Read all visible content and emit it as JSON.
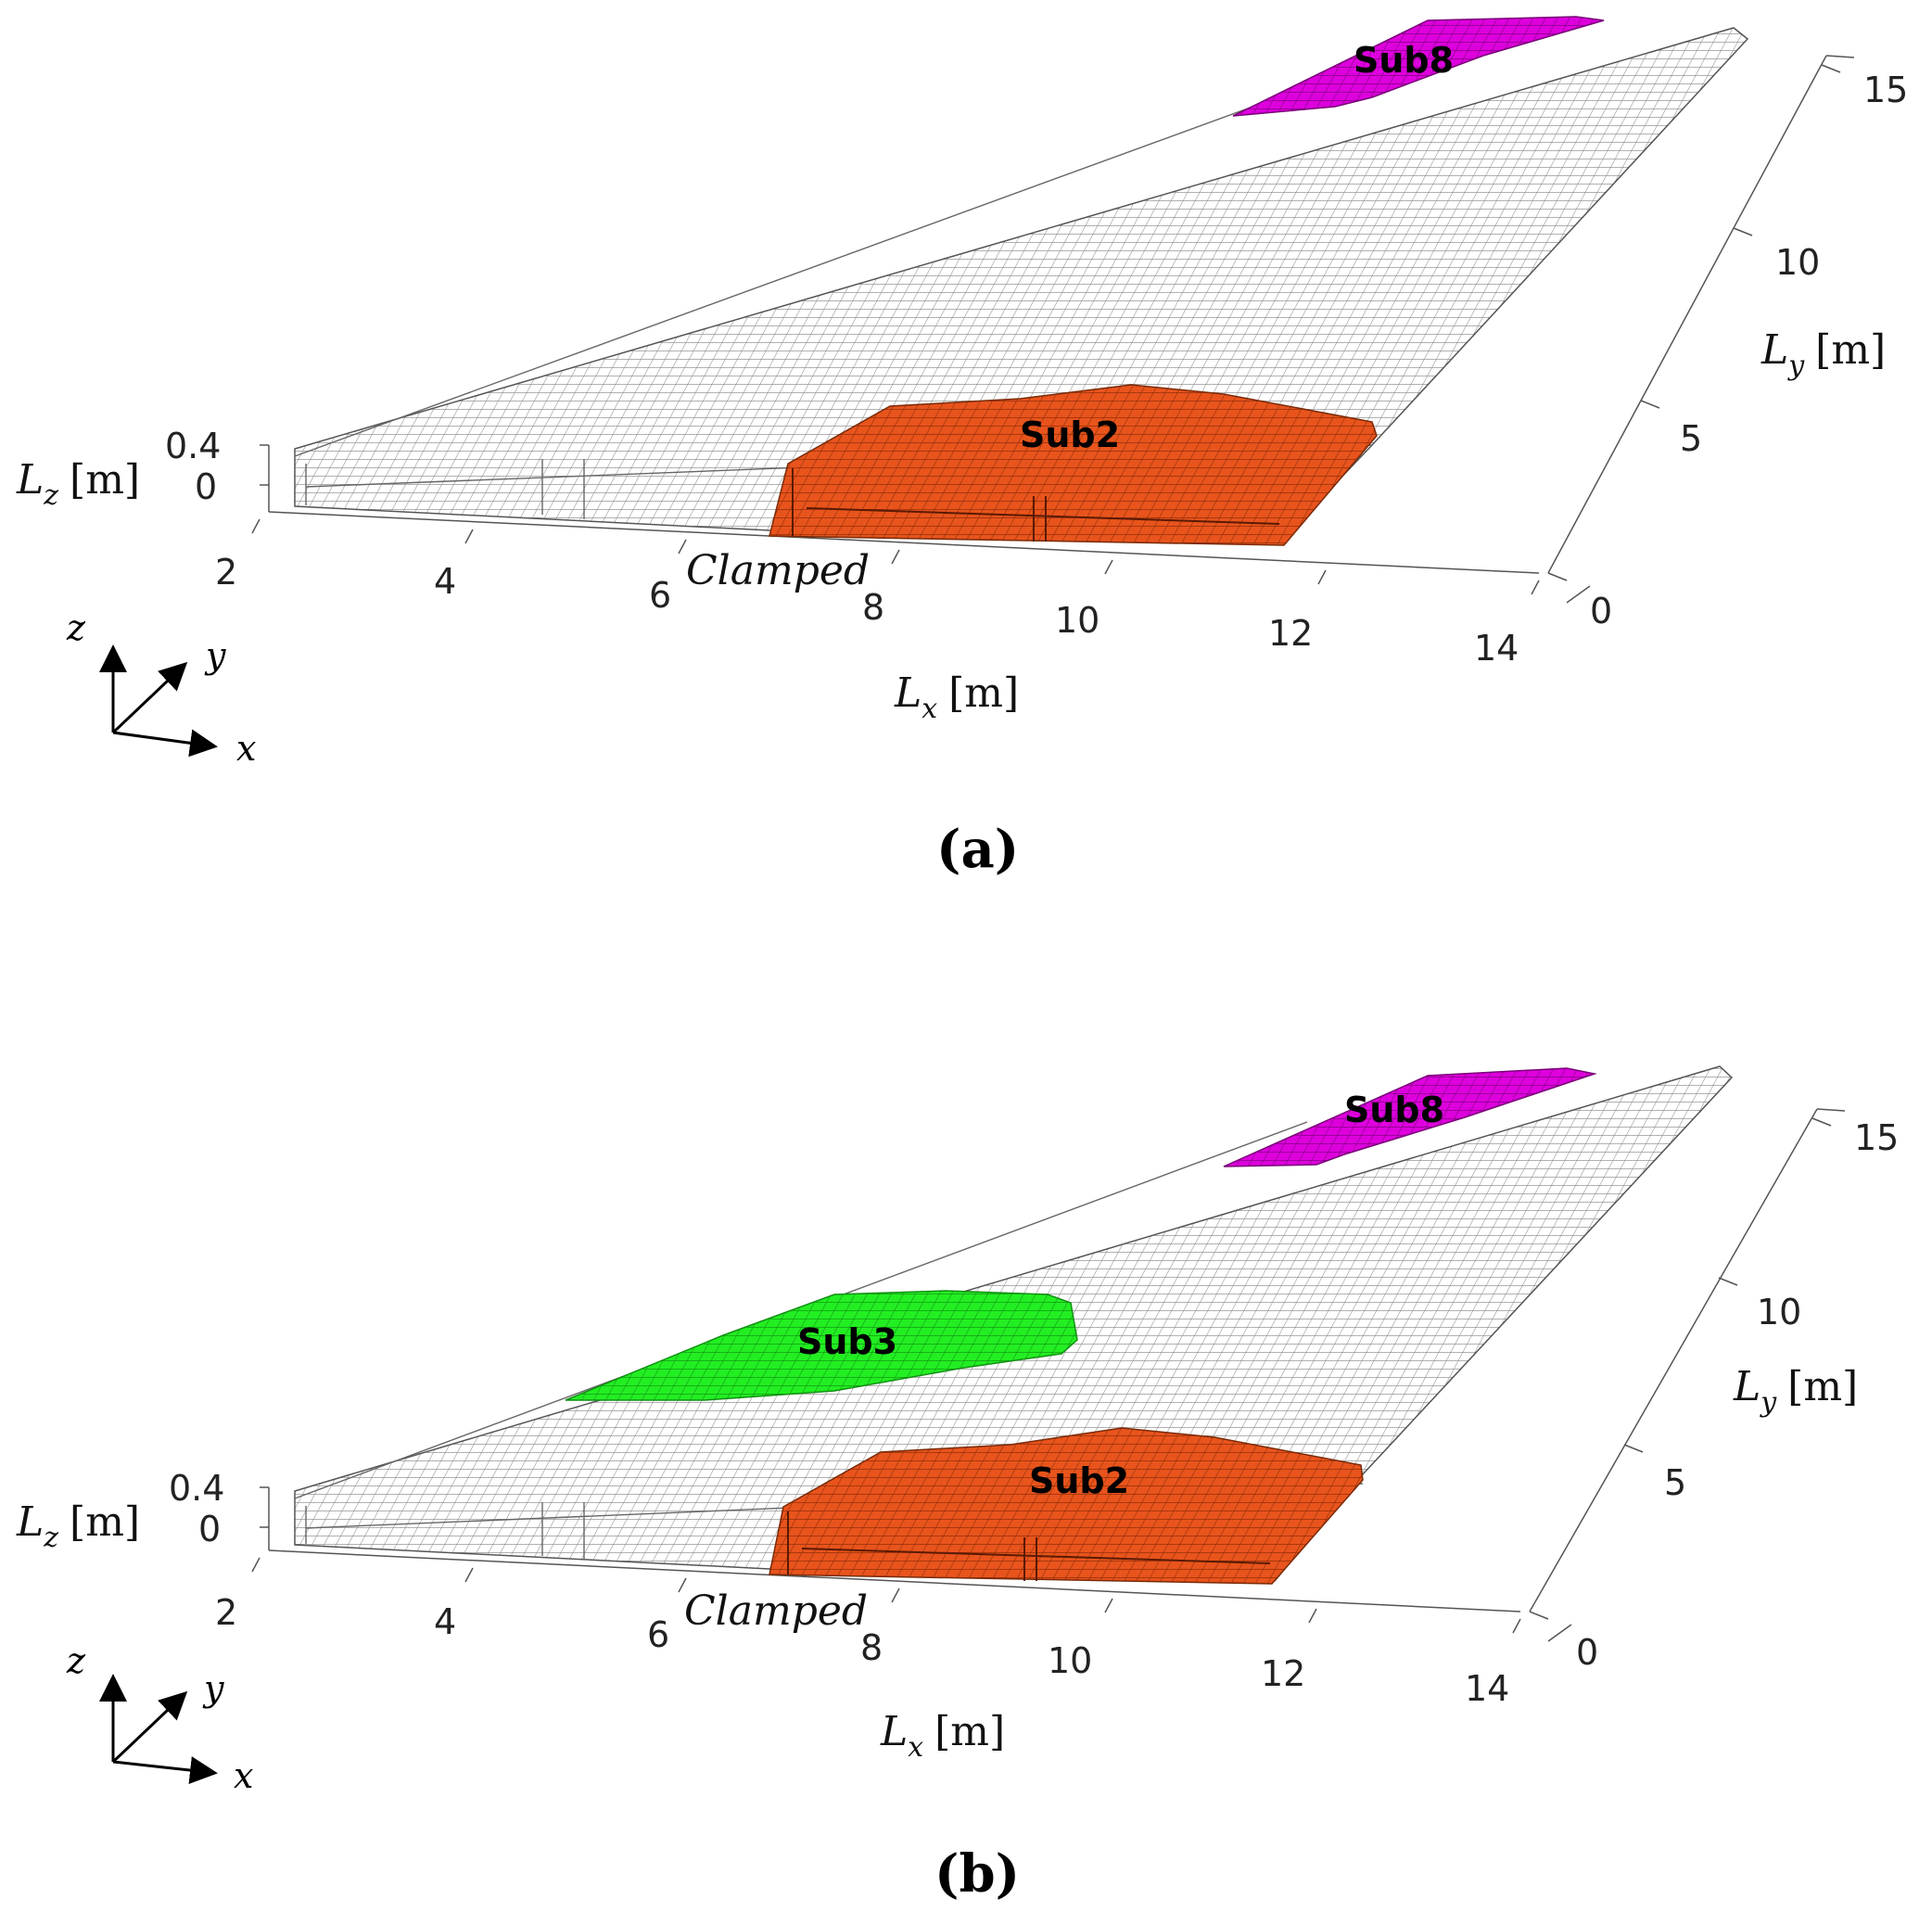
{
  "panels": [
    {
      "label": "(a)",
      "subdomains": [
        {
          "name": "Sub8",
          "color": "#dd00dd"
        },
        {
          "name": "Sub2",
          "color": "#e8541c"
        }
      ],
      "clamped_label": "Clamped",
      "axes": {
        "x_label": "L",
        "x_sub": "x",
        "x_unit": "[m]",
        "x_ticks": [
          "2",
          "4",
          "6",
          "8",
          "10",
          "12",
          "14"
        ],
        "y_label": "L",
        "y_sub": "y",
        "y_unit": "[m]",
        "y_ticks": [
          "0",
          "5",
          "10",
          "15"
        ],
        "z_label": "L",
        "z_sub": "z",
        "z_unit": "[m]",
        "z_ticks": [
          "0.4",
          "0"
        ]
      },
      "triad": {
        "x": "x",
        "y": "y",
        "z": "z"
      }
    },
    {
      "label": "(b)",
      "subdomains": [
        {
          "name": "Sub8",
          "color": "#dd00dd"
        },
        {
          "name": "Sub3",
          "color": "#22ee22"
        },
        {
          "name": "Sub2",
          "color": "#e8541c"
        }
      ],
      "clamped_label": "Clamped",
      "axes": {
        "x_label": "L",
        "x_sub": "x",
        "x_unit": "[m]",
        "x_ticks": [
          "2",
          "4",
          "6",
          "8",
          "10",
          "12",
          "14"
        ],
        "y_label": "L",
        "y_sub": "y",
        "y_unit": "[m]",
        "y_ticks": [
          "0",
          "5",
          "10",
          "15"
        ],
        "z_label": "L",
        "z_sub": "z",
        "z_unit": "[m]",
        "z_ticks": [
          "0.4",
          "0"
        ]
      },
      "triad": {
        "x": "x",
        "y": "y",
        "z": "z"
      }
    }
  ]
}
